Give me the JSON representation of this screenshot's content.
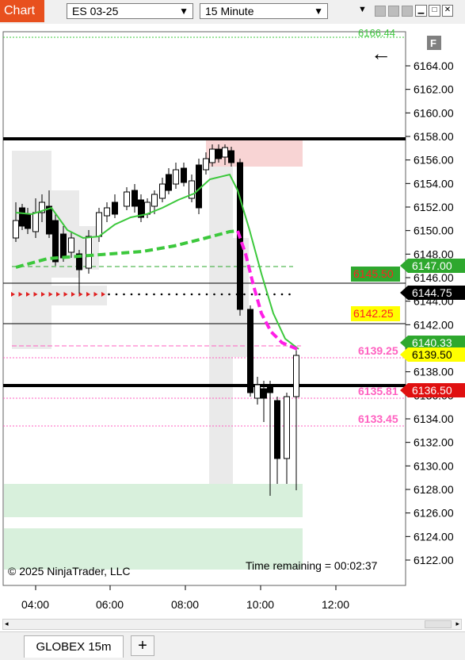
{
  "toolbar": {
    "app_label": "Chart",
    "instrument": "ES 03-25",
    "interval": "15 Minute",
    "dropdown_glyph": "▼"
  },
  "chart": {
    "top_cut_price": "6166.44",
    "corner_button": "F",
    "back_arrow": "←",
    "copyright": "© 2025 NinjaTrader, LLC",
    "time_remaining": "Time remaining = 00:02:37",
    "price_axis": [
      "6164.00",
      "6162.00",
      "6160.00",
      "6158.00",
      "6156.00",
      "6154.00",
      "6152.00",
      "6150.00",
      "6148.00",
      "6146.00",
      "6144.00",
      "6142.00",
      "6140.00",
      "6138.00",
      "6136.00",
      "6134.00",
      "6132.00",
      "6130.00",
      "6128.00",
      "6126.00",
      "6124.00",
      "6122.00"
    ],
    "time_axis": [
      "04:00",
      "06:00",
      "08:00",
      "10:00",
      "12:00"
    ],
    "right_tags": [
      {
        "text": "6147.00",
        "bg": "#2ea82e",
        "fg": "#ffffff"
      },
      {
        "text": "6144.75",
        "bg": "#000000",
        "fg": "#ffffff"
      },
      {
        "text": "6140.33",
        "bg": "#2ea82e",
        "fg": "#ffffff"
      },
      {
        "text": "6139.50",
        "bg": "#ffff00",
        "fg": "#000000"
      },
      {
        "text": "6136.50",
        "bg": "#e01010",
        "fg": "#ffffff"
      }
    ],
    "inner_labels": [
      {
        "text": "6145.50",
        "bg": "#2ea82e",
        "fg": "#ff2020"
      },
      {
        "text": "6142.25",
        "bg": "#ffff00",
        "fg": "#ff2020"
      }
    ],
    "pink_labels": [
      "6139.25",
      "6135.81",
      "6133.45"
    ]
  },
  "bottom": {
    "tab_label": "GLOBEX 15m",
    "add_tab": "+"
  },
  "colors": {
    "brand": "#e8501e",
    "sma_green": "#3cc83c",
    "vwap_pink": "#ff1ee6",
    "value_area_red": "#f8d4d4",
    "zone_green": "#d8f0dc"
  }
}
